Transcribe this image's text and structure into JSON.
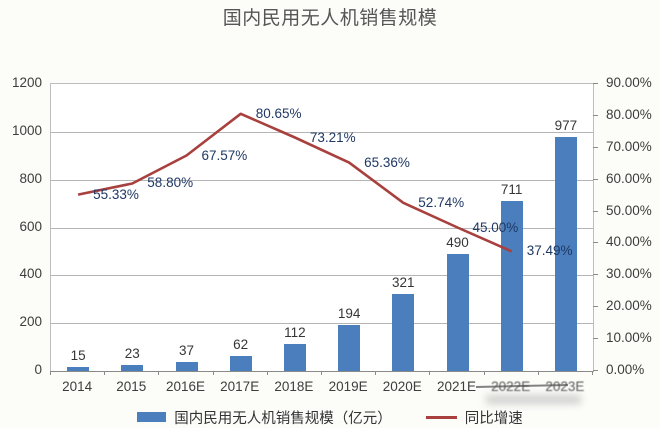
{
  "title": "国内民用无人机销售规模",
  "colors": {
    "bar": "#4a7ebc",
    "line": "#a8403e",
    "percent_label": "#1f3864",
    "value_label": "#363636",
    "axis_label": "#3d3d3d",
    "grid": "#b5b5b5",
    "axis_line": "#8a8a8a",
    "title": "#565656"
  },
  "chart_data": {
    "type": "bar",
    "title": "国内民用无人机销售规模",
    "categories": [
      "2014",
      "2015",
      "2016E",
      "2017E",
      "2018E",
      "2019E",
      "2020E",
      "2021E",
      "2022E",
      "2023E"
    ],
    "series": [
      {
        "name": "国内民用无人机销售规模（亿元）",
        "kind": "bar",
        "axis": "left",
        "values": [
          15,
          23,
          37,
          62,
          112,
          194,
          321,
          490,
          711,
          977
        ],
        "value_labels": [
          "15",
          "23",
          "37",
          "62",
          "112",
          "194",
          "321",
          "490",
          "711",
          "977"
        ]
      },
      {
        "name": "同比增速",
        "kind": "line",
        "axis": "right",
        "values": [
          55.33,
          58.8,
          67.57,
          80.65,
          73.21,
          65.36,
          52.74,
          45.0,
          37.49,
          null
        ],
        "value_labels": [
          "55.33%",
          "58.80%",
          "67.57%",
          "80.65%",
          "73.21%",
          "65.36%",
          "52.74%",
          "45.00%",
          "37.49%",
          null
        ]
      }
    ],
    "left_axis": {
      "min": 0,
      "max": 1200,
      "step": 200,
      "tick_labels": [
        "0",
        "200",
        "400",
        "600",
        "800",
        "1000",
        "1200"
      ]
    },
    "right_axis": {
      "min": 0,
      "max": 90,
      "step": 10,
      "tick_labels": [
        "0.00%",
        "10.00%",
        "20.00%",
        "30.00%",
        "40.00%",
        "50.00%",
        "60.00%",
        "70.00%",
        "80.00%",
        "90.00%"
      ]
    },
    "grid": true,
    "legend_position": "bottom"
  }
}
